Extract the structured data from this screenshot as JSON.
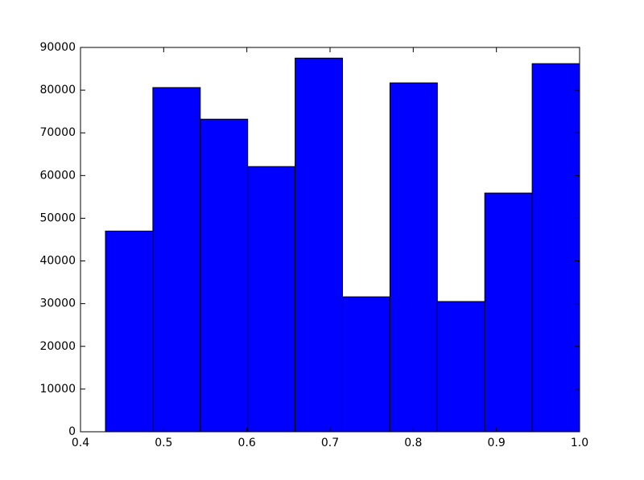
{
  "chart_data": {
    "type": "histogram",
    "bins": [
      0.43,
      0.487,
      0.544,
      0.601,
      0.658,
      0.715,
      0.772,
      0.829,
      0.886,
      0.943,
      1.0
    ],
    "values": [
      47000,
      80600,
      73200,
      62100,
      87500,
      31600,
      81700,
      30500,
      55900,
      86200
    ],
    "color": "#0000ff",
    "xlim": [
      0.4,
      1.0
    ],
    "xticks": [
      0.4,
      0.5,
      0.6,
      0.7,
      0.8,
      0.9,
      {
        "value": 1,
        "label": "1.0"
      }
    ],
    "ylim": [
      0,
      90000
    ],
    "yticks": [
      0,
      10000,
      20000,
      30000,
      40000,
      50000,
      60000,
      70000,
      80000,
      90000
    ],
    "grid": false
  }
}
